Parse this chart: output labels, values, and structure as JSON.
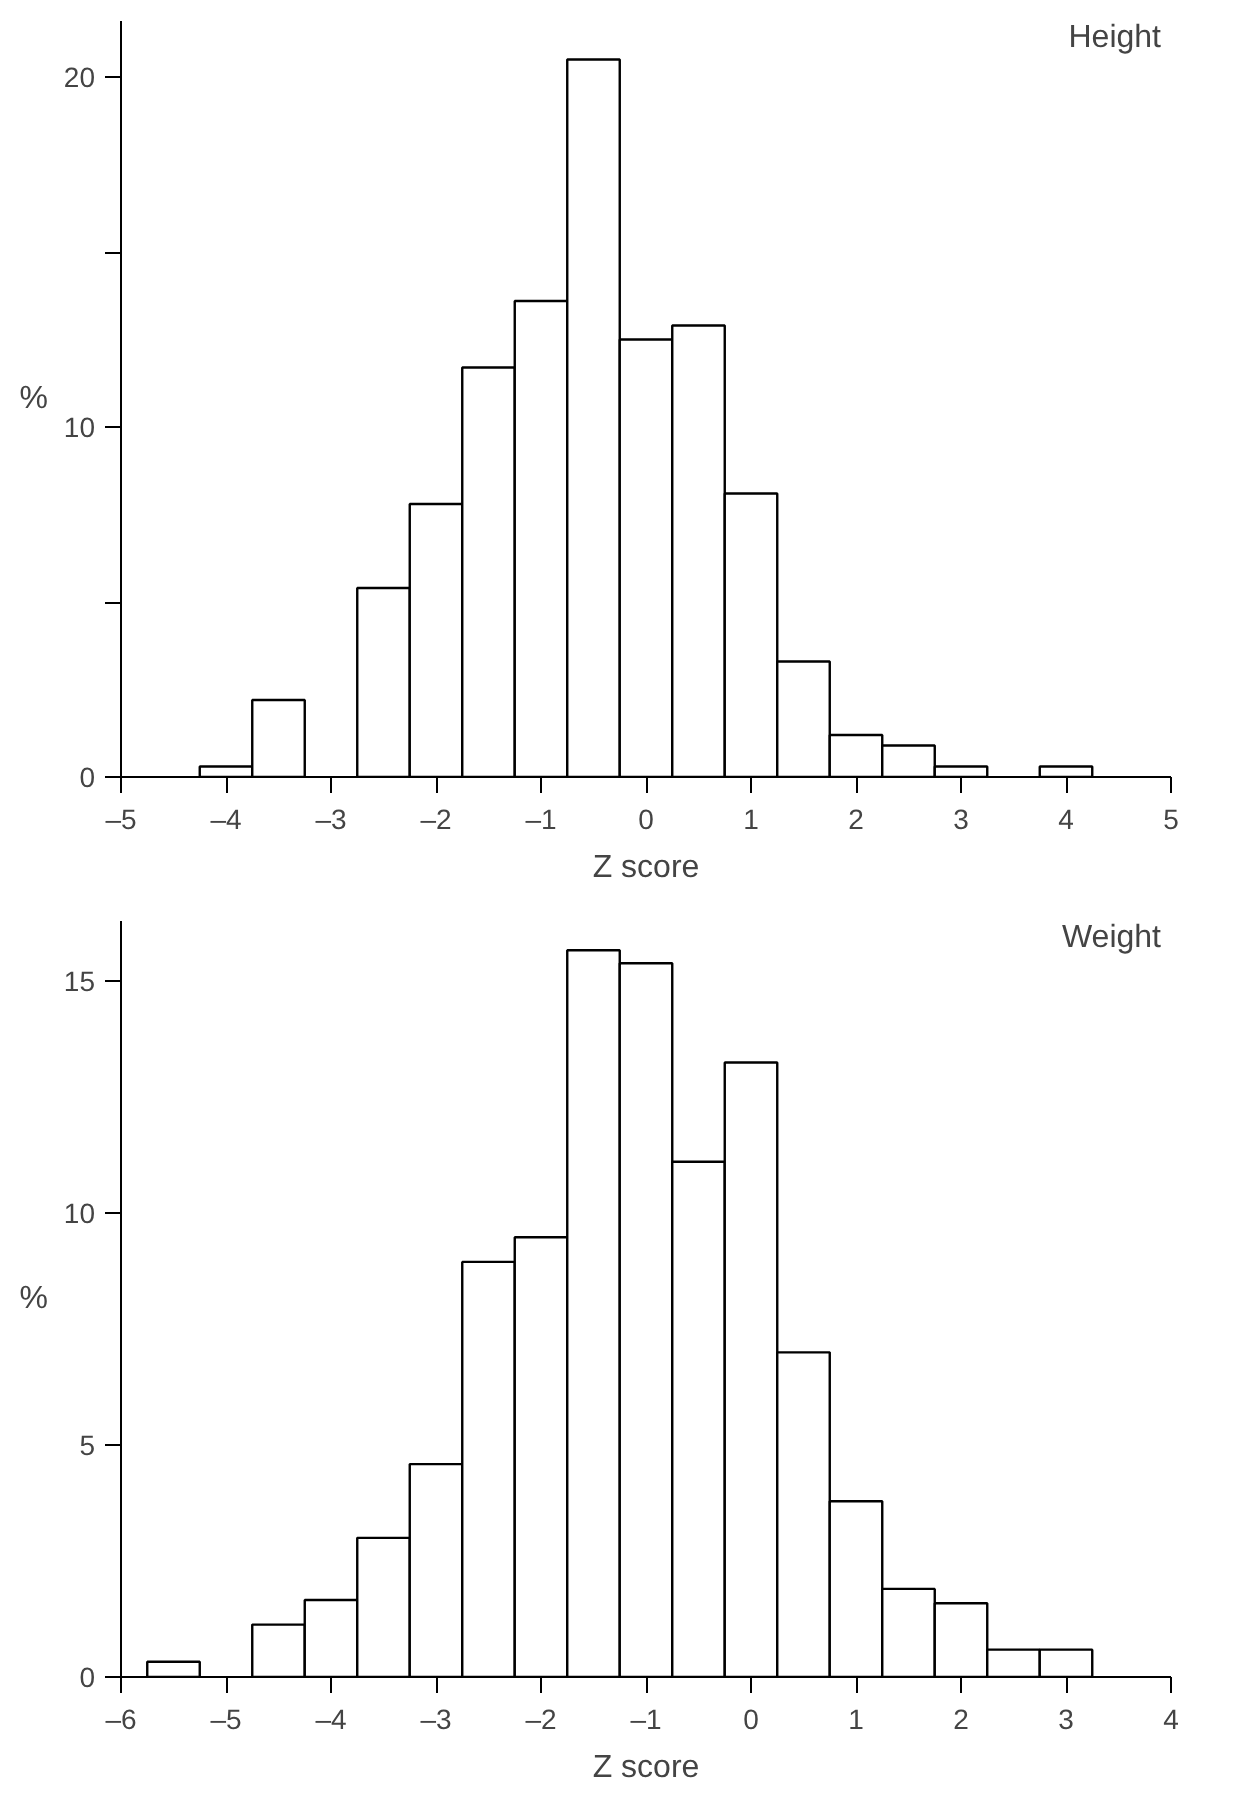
{
  "chart_data": [
    {
      "type": "histogram",
      "title": "Height",
      "xlabel": "Z score",
      "ylabel": "%",
      "bins": [
        -4.25,
        -3.75,
        -3.25,
        -2.75,
        -2.25,
        -1.75,
        -1.25,
        -0.75,
        -0.25,
        0.25,
        0.75,
        1.25,
        1.75,
        2.25,
        2.75,
        3.25,
        3.75,
        4.25
      ],
      "values": [
        0.3,
        2.2,
        null,
        5.4,
        7.8,
        11.7,
        13.6,
        20.5,
        12.5,
        12.9,
        8.1,
        3.3,
        1.2,
        0.9,
        0.3,
        null,
        0.3
      ],
      "color": "#ffffff",
      "xlim": [
        -5,
        5
      ],
      "xticks": [
        {
          "value": -5,
          "label": "–5"
        },
        {
          "value": -4,
          "label": "–4"
        },
        {
          "value": -3,
          "label": "–3"
        },
        {
          "value": -2,
          "label": "–2"
        },
        {
          "value": -1,
          "label": "–1"
        },
        0,
        1,
        2,
        3,
        4,
        5
      ],
      "ylim": [
        0,
        21.6
      ],
      "yticks": [
        0,
        {
          "value": 5,
          "label": null
        },
        10,
        {
          "value": 15,
          "label": null
        },
        20
      ],
      "grid": false
    },
    {
      "type": "histogram",
      "title": "Weight",
      "xlabel": "Z score",
      "ylabel": "%",
      "bins": [
        -5.75,
        -5.25,
        -4.75,
        -4.25,
        -3.75,
        -3.25,
        -2.75,
        -2.25,
        -1.75,
        -1.25,
        -0.75,
        -0.25,
        0.25,
        0.75,
        1.25,
        1.75,
        2.25,
        2.75,
        3.25
      ],
      "values": [
        0.33,
        null,
        1.13,
        1.66,
        3.0,
        4.59,
        8.95,
        9.48,
        15.67,
        15.39,
        11.11,
        13.25,
        7.0,
        3.79,
        1.9,
        1.59,
        0.59,
        0.59
      ],
      "color": "#ffffff",
      "xlim": [
        -6,
        4
      ],
      "xticks": [
        {
          "value": -6,
          "label": "–6"
        },
        {
          "value": -5,
          "label": "–5"
        },
        {
          "value": -4,
          "label": "–4"
        },
        {
          "value": -3,
          "label": "–3"
        },
        {
          "value": -2,
          "label": "–2"
        },
        {
          "value": -1,
          "label": "–1"
        },
        0,
        1,
        2,
        3,
        4
      ],
      "ylim": [
        0,
        16.3
      ],
      "yticks": [
        0,
        5,
        10,
        15
      ],
      "grid": false
    }
  ]
}
